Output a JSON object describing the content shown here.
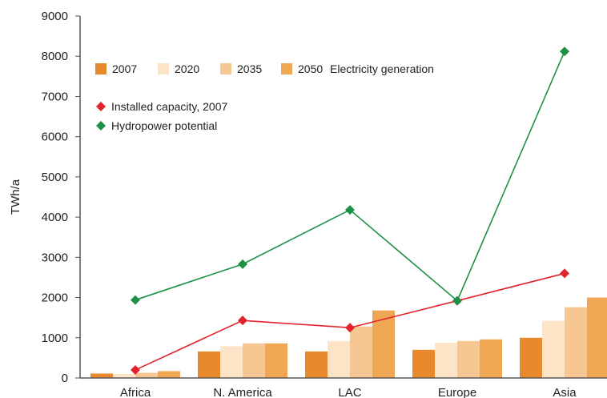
{
  "chart_data": {
    "type": "bar",
    "categories": [
      "Africa",
      "N. America",
      "LAC",
      "Europe",
      "Asia"
    ],
    "ylabel": "TWh/a",
    "ylim": [
      0,
      9000
    ],
    "yticks": [
      0,
      1000,
      2000,
      3000,
      4000,
      5000,
      6000,
      7000,
      8000,
      9000
    ],
    "grid": false,
    "legend_group_label": "Electricity generation",
    "series": [
      {
        "name": "2007",
        "kind": "bar",
        "color": "#e8892e",
        "values": [
          110,
          660,
          660,
          700,
          1000
        ]
      },
      {
        "name": "2020",
        "kind": "bar",
        "color": "#fde4c6",
        "values": [
          100,
          790,
          920,
          880,
          1420
        ]
      },
      {
        "name": "2035",
        "kind": "bar",
        "color": "#f6c792",
        "values": [
          130,
          860,
          1280,
          920,
          1760
        ]
      },
      {
        "name": "2050",
        "kind": "bar",
        "color": "#efa754",
        "values": [
          170,
          860,
          1680,
          960,
          2000
        ]
      },
      {
        "name": "Installed capacity, 2007",
        "kind": "line",
        "color": "#e2232b",
        "values": [
          200,
          1430,
          1250,
          1920,
          2600
        ]
      },
      {
        "name": "Hydropower potential",
        "kind": "line",
        "color": "#1e9146",
        "values": [
          1940,
          2830,
          4180,
          1920,
          8120
        ]
      }
    ]
  }
}
